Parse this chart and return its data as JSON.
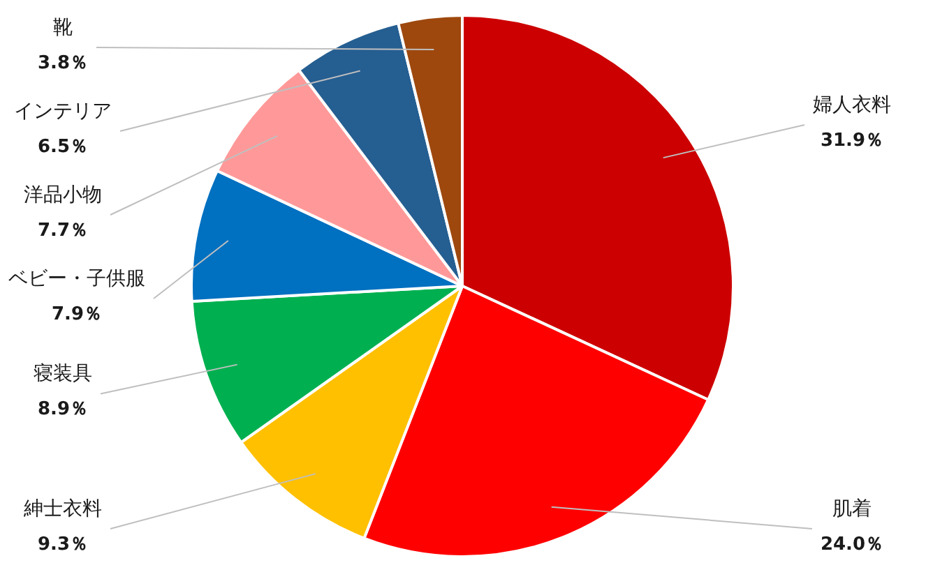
{
  "chart_data": {
    "type": "pie",
    "categories": [
      "婦人衣料",
      "肌着",
      "紳士衣料",
      "寝装具",
      "ベビー・子供服",
      "洋品小物",
      "インテリア",
      "靴"
    ],
    "values": [
      31.9,
      24.0,
      9.3,
      8.9,
      7.9,
      7.7,
      6.5,
      3.8
    ],
    "value_labels": [
      "31.9％",
      "24.0％",
      "9.3％",
      "8.9％",
      "7.9％",
      "7.7％",
      "6.5％",
      "3.8％"
    ],
    "colors": [
      "#cc0000",
      "#ff0000",
      "#ffc000",
      "#00b050",
      "#0070c0",
      "#ff9999",
      "#255e91",
      "#9e480e"
    ]
  }
}
